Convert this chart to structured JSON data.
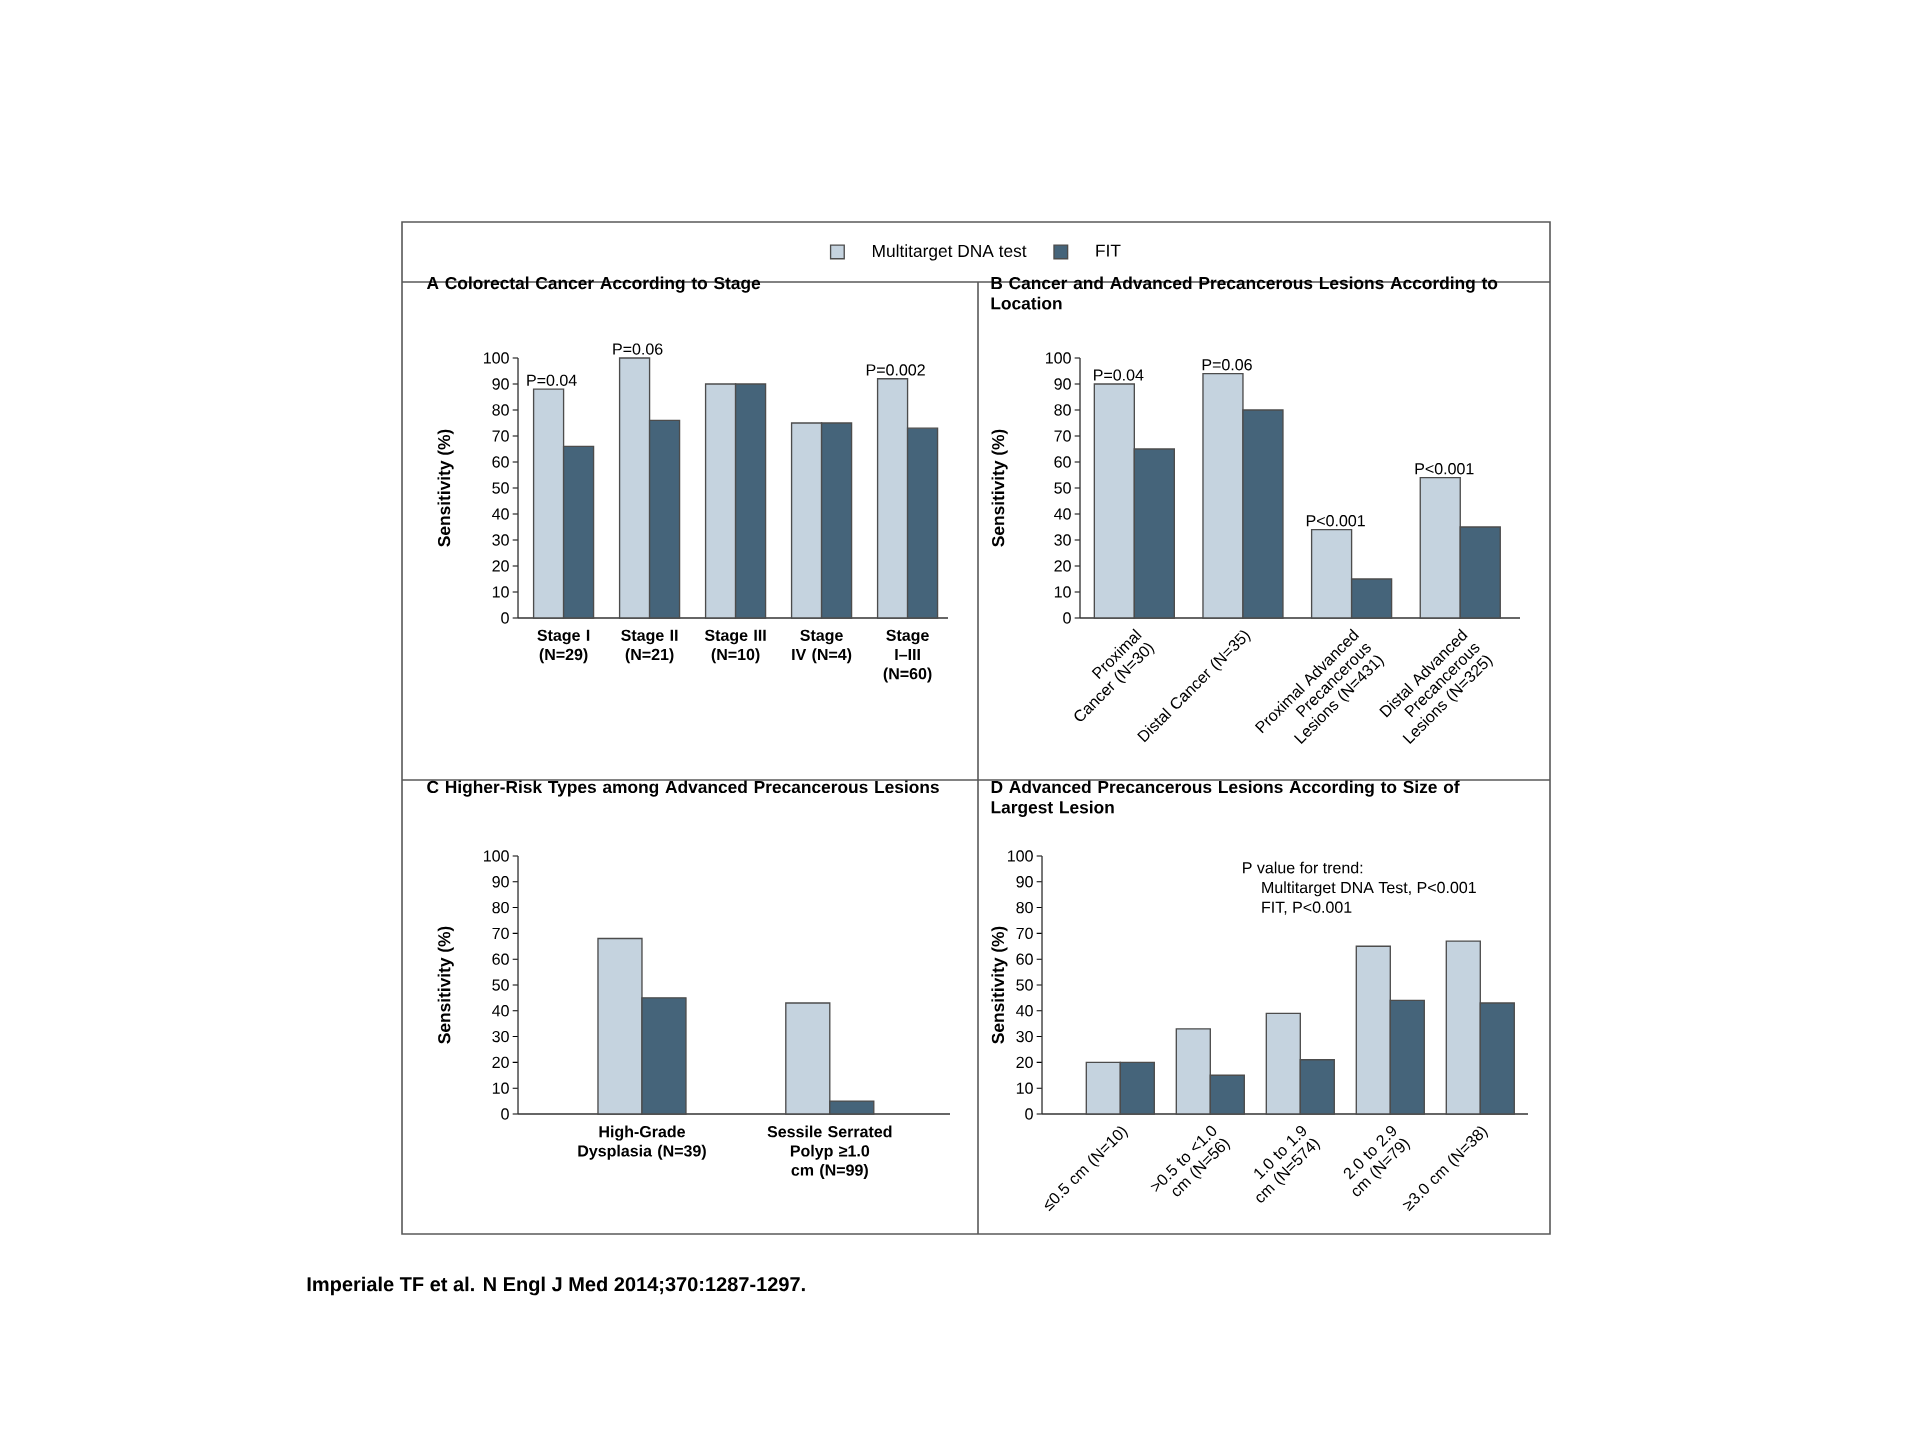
{
  "chart_data": [
    {
      "type": "bar",
      "title": "A  Colorectal Cancer According to Stage",
      "ylabel": "Sensitivity (%)",
      "categories": [
        "Stage I (N=29)",
        "Stage II (N=21)",
        "Stage III (N=10)",
        "Stage IV (N=4)",
        "Stage I–III (N=60)"
      ],
      "series": [
        {
          "name": "Multitarget DNA test",
          "color": "#c5d3df",
          "values": [
            88,
            100,
            90,
            75,
            92
          ]
        },
        {
          "name": "FIT",
          "color": "#45647a",
          "values": [
            66,
            76,
            90,
            75,
            73
          ]
        }
      ],
      "ylim": [
        0,
        100
      ],
      "yticks": [
        0,
        10,
        20,
        30,
        40,
        50,
        60,
        70,
        80,
        90,
        100
      ],
      "legend": "top",
      "annotations": [
        {
          "text": "P=0.04",
          "x": "Stage I (N=29)",
          "y": 88
        },
        {
          "text": "P=0.06",
          "x": "Stage II (N=21)",
          "y": 100
        },
        {
          "text": "P=0.002",
          "x": "Stage I–III (N=60)",
          "y": 92
        },
        "Imperiale TF et al. N Engl J Med 2014;370:1287-1297."
      ]
    },
    {
      "type": "bar",
      "title": "B  Cancer and Advanced Precancerous Lesions According to Location",
      "ylabel": "Sensitivity (%)",
      "categories": [
        "Proximal Cancer (N=30)",
        "Distal Cancer (N=35)",
        "Proximal Advanced Precancerous Lesions (N=431)",
        "Distal Advanced Precancerous Lesions (N=325)"
      ],
      "series": [
        {
          "color": "#c5d3df",
          "values": [
            90,
            94,
            34,
            54
          ]
        },
        {
          "color": "#45647a",
          "values": [
            65,
            80,
            15,
            35
          ]
        }
      ],
      "ylim": [
        0,
        100
      ],
      "yticks": [
        0,
        10,
        20,
        30,
        40,
        50,
        60,
        70,
        80,
        90,
        100
      ],
      "annotations": [
        {
          "text": "P=0.04",
          "x": "Proximal Cancer (N=30)",
          "y": 90
        },
        {
          "text": "P=0.06",
          "x": "Distal Cancer (N=35)",
          "y": 94
        },
        {
          "text": "P<0.001",
          "x": "Proximal Advanced Precancerous Lesions (N=431)",
          "y": 34
        },
        {
          "text": "P<0.001",
          "x": "Distal Advanced Precancerous Lesions (N=325)",
          "y": 54
        }
      ]
    },
    {
      "type": "bar",
      "title": "C  Higher-Risk Types among Advanced Precancerous Lesions",
      "ylabel": "Sensitivity (%)",
      "categories": [
        "High-Grade Dysplasia (N=39)",
        "Sessile Serrated Polyp ≥1.0 cm (N=99)"
      ],
      "series": [
        {
          "color": "#c5d3df",
          "values": [
            68,
            43
          ]
        },
        {
          "color": "#45647a",
          "values": [
            45,
            5
          ]
        }
      ],
      "ylim": [
        0,
        100
      ],
      "yticks": [
        0,
        10,
        20,
        30,
        40,
        50,
        60,
        70,
        80,
        90,
        100
      ]
    },
    {
      "type": "bar",
      "title": "D  Advanced Precancerous Lesions According to Size of Largest Lesion",
      "ylabel": "Sensitivity (%)",
      "categories": [
        "≤0.5 cm (N=10)",
        ">0.5 to <1.0 cm (N=56)",
        "1.0 to 1.9 cm (N=574)",
        "2.0 to 2.9 cm (N=79)",
        "≥3.0 cm (N=38)"
      ],
      "series": [
        {
          "color": "#c5d3df",
          "values": [
            20,
            33,
            39,
            65,
            67
          ]
        },
        {
          "color": "#45647a",
          "values": [
            20,
            15,
            21,
            44,
            43
          ]
        }
      ],
      "ylim": [
        0,
        100
      ],
      "yticks": [
        0,
        10,
        20,
        30,
        40,
        50,
        60,
        70,
        80,
        90,
        100
      ],
      "annotations": [
        "P value for trend:",
        "Multitarget DNA Test, P<0.001",
        "FIT, P<0.001"
      ]
    }
  ]
}
